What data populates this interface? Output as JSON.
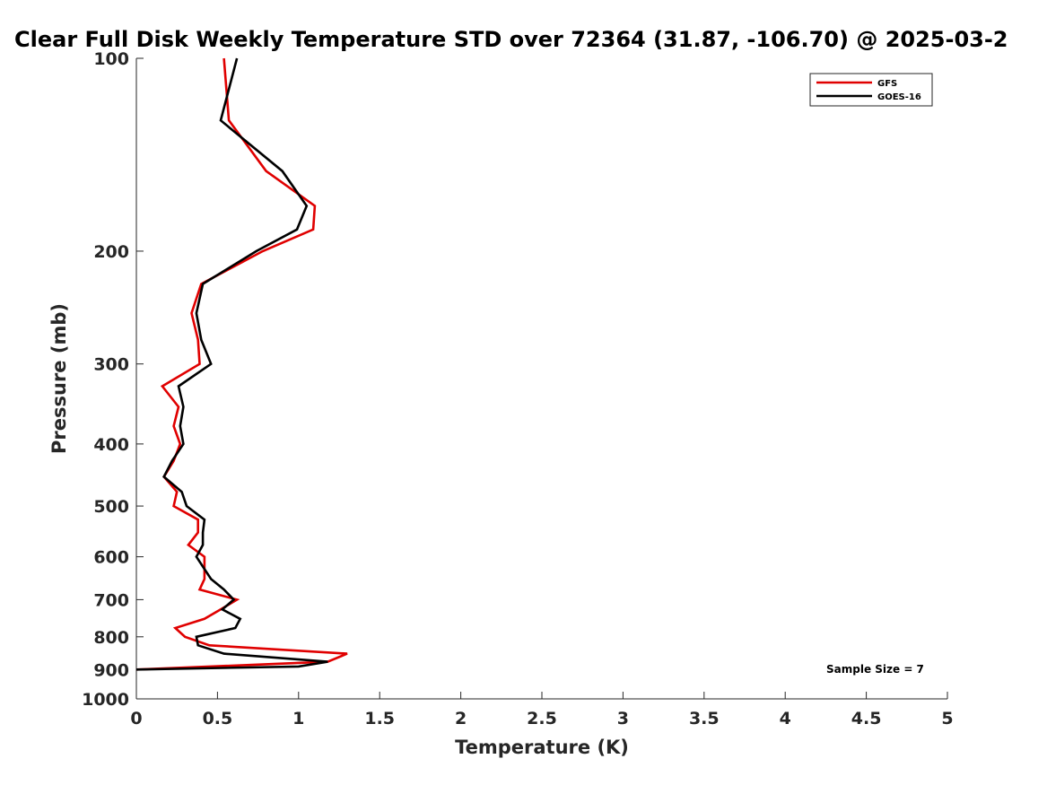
{
  "chart_data": {
    "type": "line",
    "title": "Clear Full Disk Weekly Temperature STD over 72364 (31.87, -106.70) @ 2025-03-2",
    "xlabel": "Temperature (K)",
    "ylabel": "Pressure (mb)",
    "xlim": [
      0,
      5
    ],
    "ylim": [
      1000,
      100
    ],
    "y_scale": "log",
    "x_ticks": [
      "0",
      "0.5",
      "1",
      "1.5",
      "2",
      "2.5",
      "3",
      "3.5",
      "4",
      "4.5",
      "5"
    ],
    "y_ticks": [
      "100",
      "200",
      "300",
      "400",
      "500",
      "600",
      "700",
      "800",
      "900",
      "1000"
    ],
    "legend_location": "top-right",
    "annotation": "Sample Size = 7",
    "series": [
      {
        "name": "GFS",
        "color": "#e00000",
        "points": [
          {
            "t": 0.54,
            "p": 100
          },
          {
            "t": 0.57,
            "p": 125
          },
          {
            "t": 0.8,
            "p": 150
          },
          {
            "t": 1.1,
            "p": 170
          },
          {
            "t": 1.09,
            "p": 185
          },
          {
            "t": 0.78,
            "p": 200
          },
          {
            "t": 0.4,
            "p": 225
          },
          {
            "t": 0.34,
            "p": 250
          },
          {
            "t": 0.38,
            "p": 275
          },
          {
            "t": 0.39,
            "p": 300
          },
          {
            "t": 0.16,
            "p": 325
          },
          {
            "t": 0.26,
            "p": 350
          },
          {
            "t": 0.23,
            "p": 375
          },
          {
            "t": 0.27,
            "p": 400
          },
          {
            "t": 0.23,
            "p": 425
          },
          {
            "t": 0.17,
            "p": 450
          },
          {
            "t": 0.25,
            "p": 475
          },
          {
            "t": 0.23,
            "p": 500
          },
          {
            "t": 0.38,
            "p": 525
          },
          {
            "t": 0.38,
            "p": 550
          },
          {
            "t": 0.32,
            "p": 575
          },
          {
            "t": 0.42,
            "p": 600
          },
          {
            "t": 0.42,
            "p": 650
          },
          {
            "t": 0.39,
            "p": 675
          },
          {
            "t": 0.62,
            "p": 700
          },
          {
            "t": 0.52,
            "p": 725
          },
          {
            "t": 0.42,
            "p": 750
          },
          {
            "t": 0.24,
            "p": 775
          },
          {
            "t": 0.3,
            "p": 800
          },
          {
            "t": 0.45,
            "p": 825
          },
          {
            "t": 1.3,
            "p": 850
          },
          {
            "t": 1.18,
            "p": 875
          },
          {
            "t": 0.0,
            "p": 900
          }
        ]
      },
      {
        "name": "GOES-16",
        "color": "#000000",
        "points": [
          {
            "t": 0.62,
            "p": 100
          },
          {
            "t": 0.52,
            "p": 125
          },
          {
            "t": 0.9,
            "p": 150
          },
          {
            "t": 1.05,
            "p": 170
          },
          {
            "t": 0.99,
            "p": 185
          },
          {
            "t": 0.74,
            "p": 200
          },
          {
            "t": 0.41,
            "p": 225
          },
          {
            "t": 0.37,
            "p": 250
          },
          {
            "t": 0.4,
            "p": 275
          },
          {
            "t": 0.46,
            "p": 300
          },
          {
            "t": 0.26,
            "p": 325
          },
          {
            "t": 0.29,
            "p": 350
          },
          {
            "t": 0.27,
            "p": 375
          },
          {
            "t": 0.29,
            "p": 400
          },
          {
            "t": 0.22,
            "p": 425
          },
          {
            "t": 0.17,
            "p": 450
          },
          {
            "t": 0.28,
            "p": 475
          },
          {
            "t": 0.31,
            "p": 500
          },
          {
            "t": 0.42,
            "p": 525
          },
          {
            "t": 0.41,
            "p": 550
          },
          {
            "t": 0.41,
            "p": 575
          },
          {
            "t": 0.37,
            "p": 600
          },
          {
            "t": 0.46,
            "p": 650
          },
          {
            "t": 0.54,
            "p": 675
          },
          {
            "t": 0.6,
            "p": 700
          },
          {
            "t": 0.53,
            "p": 725
          },
          {
            "t": 0.64,
            "p": 750
          },
          {
            "t": 0.61,
            "p": 775
          },
          {
            "t": 0.37,
            "p": 800
          },
          {
            "t": 0.38,
            "p": 825
          },
          {
            "t": 0.54,
            "p": 850
          },
          {
            "t": 1.18,
            "p": 875
          },
          {
            "t": 1.0,
            "p": 890
          },
          {
            "t": 0.0,
            "p": 900
          }
        ]
      }
    ]
  }
}
